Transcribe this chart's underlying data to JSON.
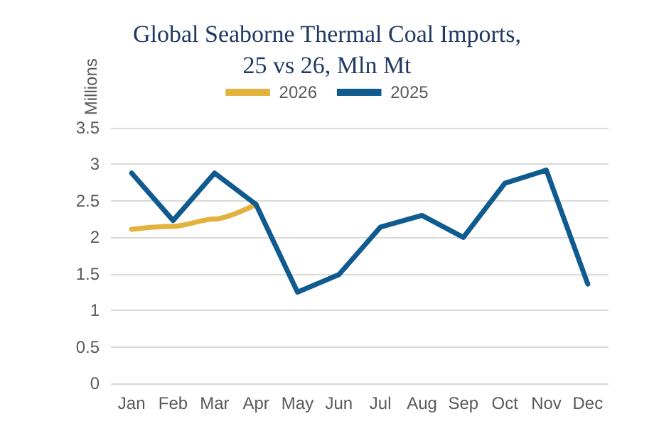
{
  "chart_data": {
    "type": "line",
    "title": "Global Seaborne Thermal Coal Imports,\n25 vs 26, Mln Mt",
    "ylabel": "Millions",
    "categories": [
      "Jan",
      "Feb",
      "Mar",
      "Apr",
      "May",
      "Jun",
      "Jul",
      "Aug",
      "Sep",
      "Oct",
      "Nov",
      "Dec"
    ],
    "series": [
      {
        "name": "2026",
        "color": "#e3b23c",
        "values": [
          2.11,
          2.15,
          2.25,
          2.45,
          null,
          null,
          null,
          null,
          null,
          null,
          null,
          null
        ]
      },
      {
        "name": "2025",
        "color": "#0f5a8e",
        "values": [
          2.88,
          2.23,
          2.88,
          2.45,
          1.25,
          1.49,
          2.14,
          2.3,
          2.0,
          2.74,
          2.92,
          1.36
        ]
      }
    ],
    "ylim": [
      0,
      3.5
    ],
    "yticks": [
      0,
      0.5,
      1,
      1.5,
      2,
      2.5,
      3,
      3.5
    ],
    "grid": "y",
    "legend": "top",
    "marker": "none",
    "line_style": "solid"
  }
}
